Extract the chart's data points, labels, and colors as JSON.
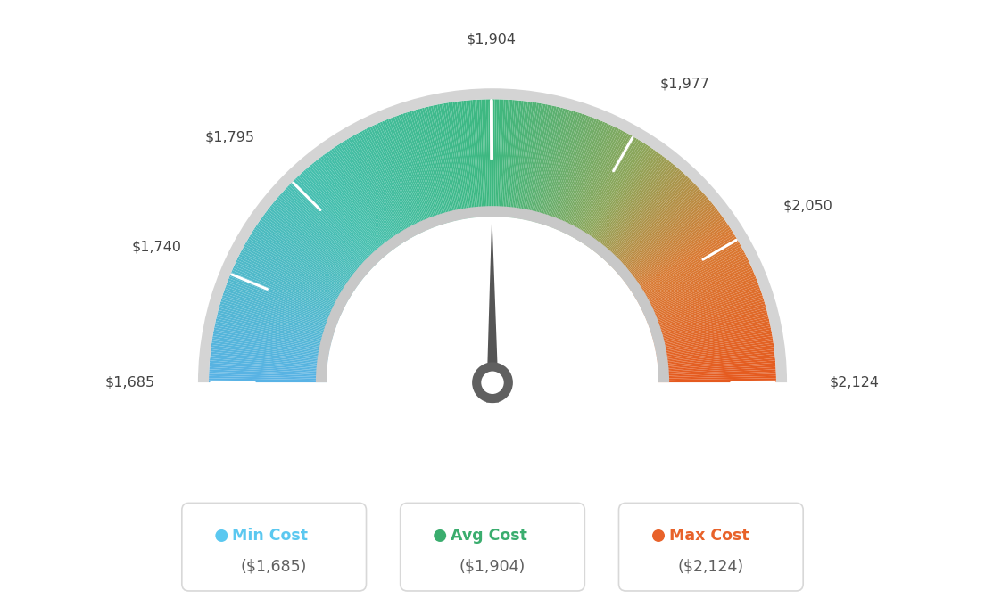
{
  "min_val": 1685,
  "max_val": 2124,
  "avg_val": 1904,
  "tick_labels": [
    "$1,685",
    "$1,740",
    "$1,795",
    "$1,904",
    "$1,977",
    "$2,050",
    "$2,124"
  ],
  "tick_values": [
    1685,
    1740,
    1795,
    1904,
    1977,
    2050,
    2124
  ],
  "legend": [
    {
      "label": "Min Cost",
      "value": "($1,685)",
      "color": "#5bc8f0"
    },
    {
      "label": "Avg Cost",
      "value": "($1,904)",
      "color": "#3aad6e"
    },
    {
      "label": "Max Cost",
      "value": "($2,124)",
      "color": "#e8622a"
    }
  ],
  "background_color": "#ffffff",
  "needle_color": "#555555",
  "hub_color": "#606060",
  "outer_border_color": "#d0d0d0",
  "inner_border_color": "#c8c8c8",
  "color_stops": [
    [
      0.0,
      [
        0.35,
        0.7,
        0.9
      ]
    ],
    [
      0.27,
      [
        0.27,
        0.75,
        0.68
      ]
    ],
    [
      0.5,
      [
        0.24,
        0.72,
        0.5
      ]
    ],
    [
      0.68,
      [
        0.55,
        0.65,
        0.35
      ]
    ],
    [
      0.82,
      [
        0.85,
        0.48,
        0.2
      ]
    ],
    [
      1.0,
      [
        0.9,
        0.35,
        0.12
      ]
    ]
  ]
}
